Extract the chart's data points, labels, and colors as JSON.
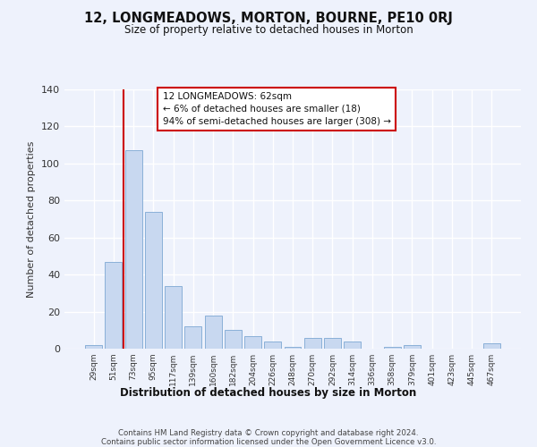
{
  "title": "12, LONGMEADOWS, MORTON, BOURNE, PE10 0RJ",
  "subtitle": "Size of property relative to detached houses in Morton",
  "xlabel": "Distribution of detached houses by size in Morton",
  "ylabel": "Number of detached properties",
  "categories": [
    "29sqm",
    "51sqm",
    "73sqm",
    "95sqm",
    "117sqm",
    "139sqm",
    "160sqm",
    "182sqm",
    "204sqm",
    "226sqm",
    "248sqm",
    "270sqm",
    "292sqm",
    "314sqm",
    "336sqm",
    "358sqm",
    "379sqm",
    "401sqm",
    "423sqm",
    "445sqm",
    "467sqm"
  ],
  "values": [
    2,
    47,
    107,
    74,
    34,
    12,
    18,
    10,
    7,
    4,
    1,
    6,
    6,
    4,
    0,
    1,
    2,
    0,
    0,
    0,
    3
  ],
  "bar_color": "#c8d8f0",
  "bar_edge_color": "#8ab0d8",
  "background_color": "#eef2fc",
  "grid_color": "#ffffff",
  "ylim": [
    0,
    140
  ],
  "yticks": [
    0,
    20,
    40,
    60,
    80,
    100,
    120,
    140
  ],
  "vline_color": "#cc0000",
  "vline_pos": 1.5,
  "annotation_text": "12 LONGMEADOWS: 62sqm\n← 6% of detached houses are smaller (18)\n94% of semi-detached houses are larger (308) →",
  "annotation_box_color": "#ffffff",
  "annotation_box_edge_color": "#cc0000",
  "footer_line1": "Contains HM Land Registry data © Crown copyright and database right 2024.",
  "footer_line2": "Contains public sector information licensed under the Open Government Licence v3.0."
}
